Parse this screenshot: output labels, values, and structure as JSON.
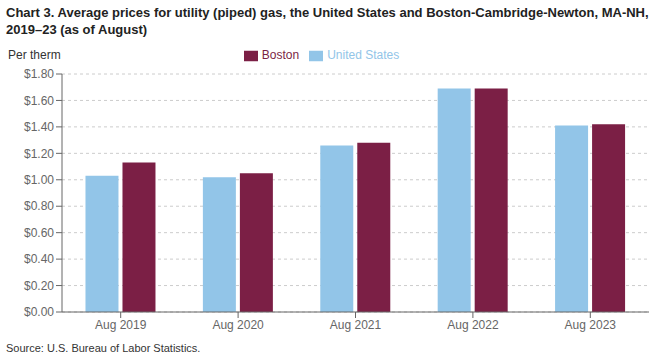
{
  "chart_data": {
    "type": "bar",
    "title": "Chart 3. Average prices for utility (piped) gas, the United States and Boston-Cambridge-Newton, MA-NH, 2019–23 (as of August)",
    "ylabel": "Per therm",
    "annotations": [
      "Source: U.S. Bureau of Labor Statistics."
    ],
    "categories": [
      "Aug 2019",
      "Aug 2020",
      "Aug 2021",
      "Aug 2022",
      "Aug 2023"
    ],
    "series": [
      {
        "name": "United States",
        "color": "#92C5E8",
        "values": [
          1.03,
          1.02,
          1.26,
          1.69,
          1.41
        ]
      },
      {
        "name": "Boston",
        "color": "#7B1F45",
        "values": [
          1.13,
          1.05,
          1.28,
          1.69,
          1.42
        ]
      }
    ],
    "ylim": [
      0.0,
      1.8
    ],
    "yticks": [
      {
        "value": 0.0,
        "label": "$0.00"
      },
      {
        "value": 0.2,
        "label": "$0.20"
      },
      {
        "value": 0.4,
        "label": "$0.40"
      },
      {
        "value": 0.6,
        "label": "$0.60"
      },
      {
        "value": 0.8,
        "label": "$0.80"
      },
      {
        "value": 1.0,
        "label": "$1.00"
      },
      {
        "value": 1.2,
        "label": "$1.20"
      },
      {
        "value": 1.4,
        "label": "$1.40"
      },
      {
        "value": 1.6,
        "label": "$1.60"
      },
      {
        "value": 1.8,
        "label": "$1.80"
      }
    ],
    "grid": true,
    "legend": "top"
  }
}
